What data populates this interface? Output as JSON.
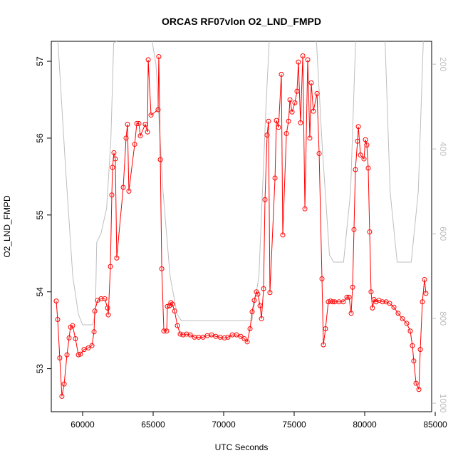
{
  "chart_data": {
    "type": "line",
    "title": "ORCAS RF07vlon O2_LND_FMPD",
    "x_label": "UTC Seconds",
    "y_label": "O2_LND_FMPD",
    "xlim": [
      57778,
      84747
    ],
    "ylim": [
      52.44,
      57.26
    ],
    "y2lim": [
      1020,
      146
    ],
    "xticks": [
      60000,
      65000,
      70000,
      75000,
      80000,
      85000
    ],
    "yticks": [
      53,
      54,
      55,
      56,
      57
    ],
    "y2ticks": [
      200,
      400,
      600,
      800,
      1000
    ],
    "series": [
      {
        "color": "#ff0000",
        "markers": true,
        "x": [
          58130,
          58230,
          58380,
          58530,
          58690,
          58890,
          59040,
          59140,
          59290,
          59490,
          59700,
          59850,
          60100,
          60400,
          60660,
          60810,
          60860,
          61060,
          61310,
          61570,
          61770,
          61820,
          61970,
          62070,
          62120,
          62220,
          62320,
          62420,
          62880,
          63080,
          63180,
          63280,
          63690,
          63840,
          63990,
          64090,
          64440,
          64600,
          64650,
          64850,
          65350,
          65400,
          65510,
          65610,
          65760,
          65960,
          66010,
          66160,
          66260,
          66360,
          66520,
          66720,
          66920,
          67120,
          67370,
          67630,
          67930,
          68230,
          68540,
          68840,
          69140,
          69440,
          69750,
          70050,
          70300,
          70610,
          70910,
          71210,
          71460,
          71670,
          71870,
          72020,
          72170,
          72320,
          72420,
          72580,
          72680,
          72830,
          72930,
          73080,
          73180,
          73280,
          73640,
          73740,
          73890,
          74090,
          74190,
          74450,
          74600,
          74700,
          74850,
          75050,
          75200,
          75300,
          75450,
          75610,
          75760,
          75960,
          76110,
          76210,
          76360,
          76620,
          76770,
          76970,
          77070,
          77220,
          77420,
          77580,
          77730,
          77880,
          78180,
          78480,
          78740,
          78890,
          79040,
          79140,
          79240,
          79340,
          79490,
          79550,
          79700,
          79950,
          80050,
          80150,
          80250,
          80350,
          80450,
          80550,
          80660,
          80810,
          81010,
          81260,
          81520,
          81770,
          82070,
          82370,
          82680,
          82980,
          83230,
          83380,
          83480,
          83640,
          83840,
          83940,
          84090,
          84240,
          84340
        ],
        "values": [
          53.88,
          53.64,
          53.14,
          52.64,
          52.8,
          53.18,
          53.4,
          53.54,
          53.56,
          53.39,
          53.18,
          53.19,
          53.25,
          53.27,
          53.3,
          53.48,
          53.75,
          53.89,
          53.91,
          53.91,
          53.79,
          53.7,
          54.33,
          55.26,
          55.62,
          55.81,
          55.73,
          54.44,
          55.36,
          56.0,
          56.18,
          55.31,
          55.92,
          56.19,
          56.19,
          56.03,
          56.18,
          56.08,
          57.02,
          56.3,
          56.37,
          57.06,
          55.72,
          54.3,
          53.49,
          53.49,
          53.81,
          53.82,
          53.86,
          53.84,
          53.75,
          53.56,
          53.45,
          53.44,
          53.45,
          53.44,
          53.41,
          53.41,
          53.41,
          53.43,
          53.44,
          53.42,
          53.41,
          53.4,
          53.41,
          53.44,
          53.44,
          53.42,
          53.39,
          53.35,
          53.52,
          53.74,
          53.89,
          54.0,
          53.97,
          53.82,
          53.65,
          54.04,
          55.2,
          56.04,
          56.22,
          53.99,
          55.48,
          56.23,
          56.14,
          56.83,
          54.74,
          56.06,
          56.22,
          56.5,
          56.34,
          56.46,
          56.61,
          56.99,
          56.2,
          57.07,
          55.08,
          57.02,
          56.0,
          56.72,
          56.35,
          56.58,
          55.8,
          54.17,
          53.31,
          53.52,
          53.87,
          53.88,
          53.87,
          53.87,
          53.87,
          53.87,
          53.93,
          53.93,
          53.72,
          54.06,
          54.81,
          55.59,
          55.96,
          56.15,
          55.78,
          55.73,
          55.98,
          55.91,
          55.61,
          54.78,
          54.0,
          53.79,
          53.9,
          53.87,
          53.89,
          53.87,
          53.87,
          53.85,
          53.8,
          53.72,
          53.65,
          53.59,
          53.49,
          53.3,
          53.1,
          52.81,
          52.73,
          53.25,
          53.87,
          54.16,
          53.98
        ]
      },
      {
        "color": "#bebebe",
        "axis": "y2",
        "markers": false,
        "x": [
          58200,
          58800,
          59300,
          59700,
          60000,
          60700,
          60900,
          61000,
          61300,
          61700,
          62000,
          62200,
          64700,
          65200,
          65700,
          66200,
          66700,
          67000,
          72000,
          72500,
          73000,
          73300,
          76500,
          77000,
          77500,
          77800,
          78500,
          79000,
          79400,
          81400,
          81800,
          82300,
          83300,
          83800,
          84200
        ],
        "values": [
          120,
          450,
          700,
          790,
          815,
          815,
          790,
          620,
          600,
          540,
          380,
          150,
          100,
          200,
          500,
          700,
          790,
          805,
          805,
          700,
          300,
          100,
          100,
          400,
          650,
          667,
          667,
          500,
          100,
          100,
          500,
          667,
          667,
          500,
          100
        ]
      }
    ]
  }
}
